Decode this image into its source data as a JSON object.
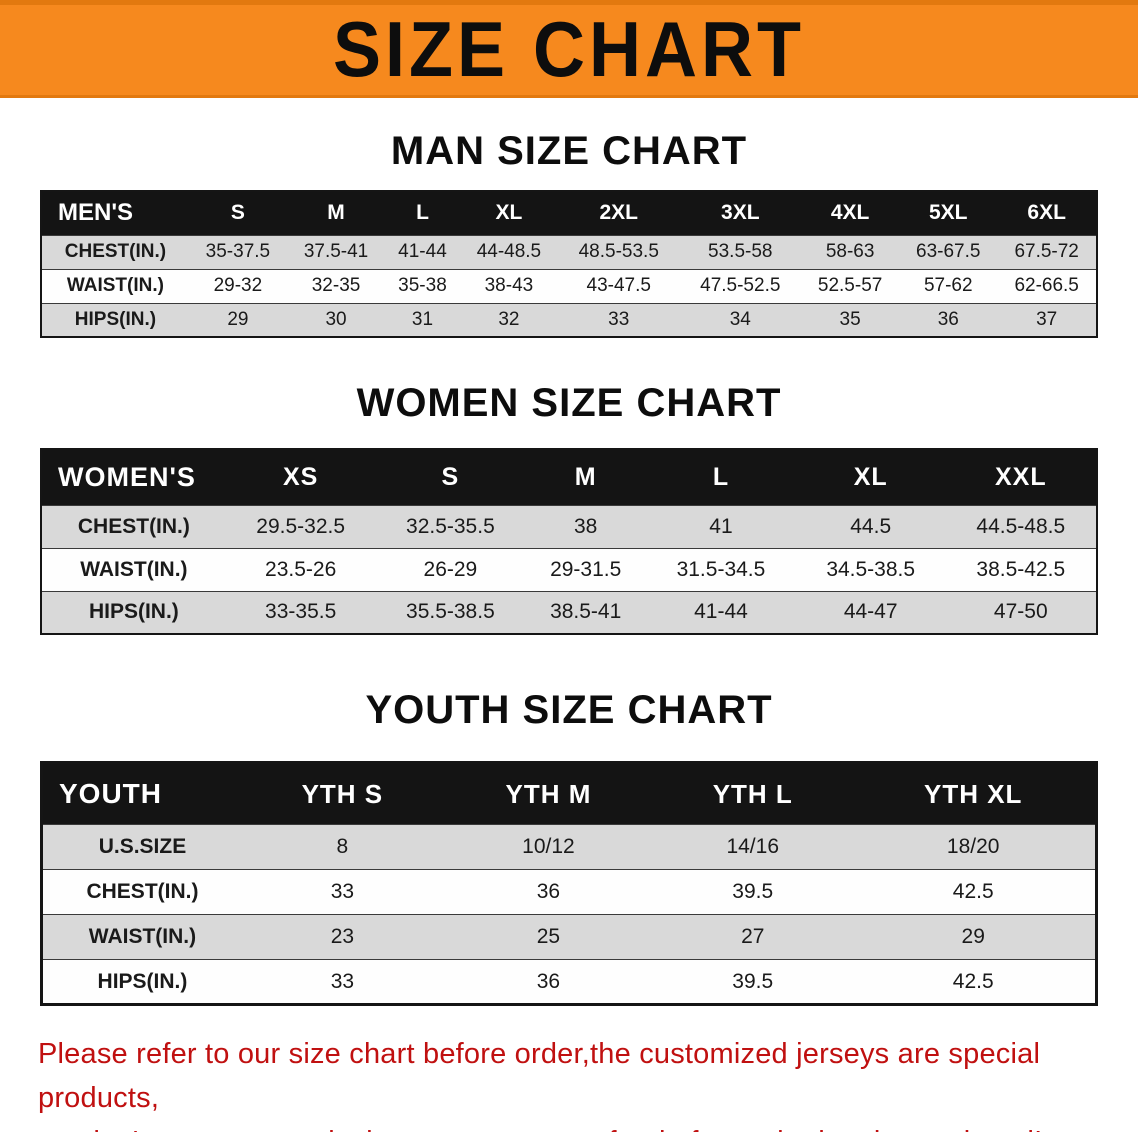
{
  "banner": {
    "title": "SIZE CHART",
    "bg_color": "#F6891E",
    "text_color": "#0D0D0D"
  },
  "sections": [
    {
      "heading": "MAN SIZE CHART",
      "table": {
        "header": [
          "MEN'S",
          "S",
          "M",
          "L",
          "XL",
          "2XL",
          "3XL",
          "4XL",
          "5XL",
          "6XL"
        ],
        "rows": [
          [
            "CHEST(IN.)",
            "35-37.5",
            "37.5-41",
            "41-44",
            "44-48.5",
            "48.5-53.5",
            "53.5-58",
            "58-63",
            "63-67.5",
            "67.5-72"
          ],
          [
            "WAIST(IN.)",
            "29-32",
            "32-35",
            "35-38",
            "38-43",
            "43-47.5",
            "47.5-52.5",
            "52.5-57",
            "57-62",
            "62-66.5"
          ],
          [
            "HIPS(IN.)",
            "29",
            "30",
            "31",
            "32",
            "33",
            "34",
            "35",
            "36",
            "37"
          ]
        ]
      }
    },
    {
      "heading": "WOMEN SIZE CHART",
      "table": {
        "header": [
          "WOMEN'S",
          "XS",
          "S",
          "M",
          "L",
          "XL",
          "XXL"
        ],
        "rows": [
          [
            "CHEST(IN.)",
            "29.5-32.5",
            "32.5-35.5",
            "38",
            "41",
            "44.5",
            "44.5-48.5"
          ],
          [
            "WAIST(IN.)",
            "23.5-26",
            "26-29",
            "29-31.5",
            "31.5-34.5",
            "34.5-38.5",
            "38.5-42.5"
          ],
          [
            "HIPS(IN.)",
            "33-35.5",
            "35.5-38.5",
            "38.5-41",
            "41-44",
            "44-47",
            "47-50"
          ]
        ]
      }
    },
    {
      "heading": "YOUTH SIZE CHART",
      "table": {
        "header": [
          "YOUTH",
          "YTH S",
          "YTH M",
          "YTH L",
          "YTH XL"
        ],
        "rows": [
          [
            "U.S.SIZE",
            "8",
            "10/12",
            "14/16",
            "18/20"
          ],
          [
            "CHEST(IN.)",
            "33",
            "36",
            "39.5",
            "42.5"
          ],
          [
            "WAIST(IN.)",
            "23",
            "25",
            "27",
            "29"
          ],
          [
            "HIPS(IN.)",
            "33",
            "36",
            "39.5",
            "42.5"
          ]
        ]
      }
    }
  ],
  "footer": {
    "line1": "Please refer to our size chart before order,the customized jerseys are special products,",
    "line2": "we don't accept cancel, change, teturn or refund after order has been placed!",
    "text_color": "#C01010"
  },
  "row_colors": {
    "header_bg": "#141414",
    "header_text": "#FFFFFF",
    "stripe_gray": "#D9D9D9",
    "stripe_white": "#FEFEFE"
  }
}
